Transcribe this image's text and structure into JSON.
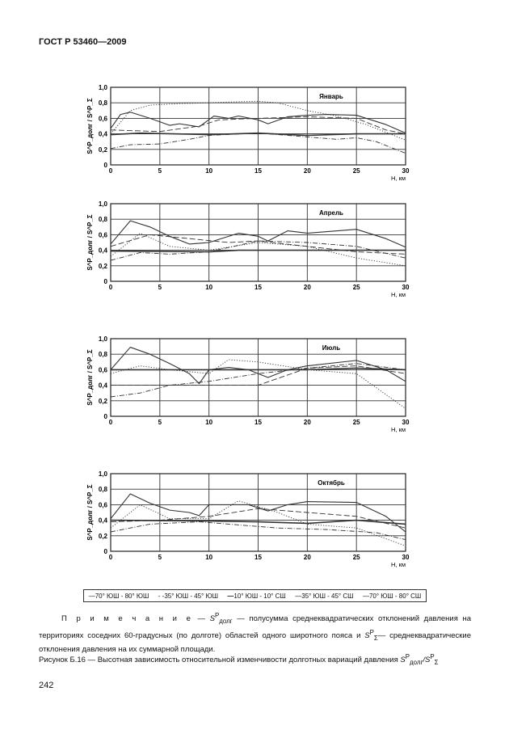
{
  "header": "ГОСТ Р 53460—2009",
  "legend": [
    "70° ЮШ - 80° ЮШ",
    "35° ЮШ - 45° ЮШ",
    "10° ЮШ - 10° СШ",
    "35° ЮШ - 45° СШ",
    "70° ЮШ - 80° СШ"
  ],
  "note": {
    "label": "П р и м е ч а н и е",
    "dash": "—",
    "sym1": "S",
    "sup1": "P",
    "sub1": "долг",
    "text1": "— полусумма среднеквадратических отклонений давления на территориях соседних 60-градусных (по долготе) областей одного широтного пояса и",
    "sym2": "S",
    "sup2": "P",
    "sub2": "Σ",
    "text2": "— среднеквадратические отклонения давления на их суммарной площади."
  },
  "caption": {
    "text": "Рисунок Б.16 — Высотная зависимость относительной изменчивости долготных вариаций давления",
    "sym": "S",
    "sup": "P",
    "sub": "долг",
    "slash": "/S",
    "sup2": "P",
    "sub2": "Σ"
  },
  "page_number": "242",
  "chart_data": [
    {
      "type": "line",
      "title": "Январь",
      "xlabel": "H, км",
      "ylabel": "S^P_долг / S^P_Σ",
      "xlim": [
        0,
        30
      ],
      "ylim": [
        0,
        1
      ],
      "xticks": [
        "0",
        "5",
        "10",
        "15",
        "20",
        "25",
        "30"
      ],
      "yticks": [
        "0",
        "0,2",
        "0,4",
        "0,6",
        "0,8",
        "1,0"
      ],
      "grid": true,
      "series": [
        {
          "name": "70° ЮШ - 80° ЮШ",
          "style": "solid",
          "x": [
            0,
            1,
            2,
            4,
            6,
            7,
            9,
            10.5,
            12,
            13,
            15,
            16,
            18,
            20,
            22,
            25,
            28,
            30
          ],
          "y": [
            0.47,
            0.65,
            0.68,
            0.6,
            0.51,
            0.53,
            0.49,
            0.63,
            0.6,
            0.63,
            0.58,
            0.53,
            0.62,
            0.64,
            0.65,
            0.64,
            0.52,
            0.41
          ]
        },
        {
          "name": "35° ЮШ - 45° ЮШ",
          "style": "dotted",
          "x": [
            0,
            2,
            4,
            7,
            10,
            12,
            15,
            17,
            20,
            23,
            26,
            30
          ],
          "y": [
            0.4,
            0.7,
            0.77,
            0.79,
            0.8,
            0.81,
            0.82,
            0.8,
            0.7,
            0.63,
            0.52,
            0.32
          ]
        },
        {
          "name": "10° ЮШ - 10° СШ",
          "style": "bold",
          "x": [
            0,
            3,
            10,
            15,
            20,
            25,
            30
          ],
          "y": [
            0.39,
            0.41,
            0.39,
            0.41,
            0.38,
            0.4,
            0.4
          ]
        },
        {
          "name": "35° ЮШ - 45° СШ",
          "style": "dashdot",
          "x": [
            0,
            2,
            5,
            8,
            10,
            15,
            20,
            23,
            25,
            27,
            30
          ],
          "y": [
            0.21,
            0.26,
            0.27,
            0.33,
            0.38,
            0.41,
            0.36,
            0.33,
            0.35,
            0.3,
            0.15
          ]
        },
        {
          "name": "70° ЮШ - 80° СШ",
          "style": "dashed",
          "x": [
            0,
            5,
            9,
            11,
            15,
            20,
            25,
            28,
            30
          ],
          "y": [
            0.45,
            0.43,
            0.5,
            0.58,
            0.6,
            0.62,
            0.6,
            0.45,
            0.4
          ]
        }
      ]
    },
    {
      "type": "line",
      "title": "Апрель",
      "xlabel": "H, км",
      "ylabel": "S^P_долг / S^P_Σ",
      "xlim": [
        0,
        30
      ],
      "ylim": [
        0,
        1
      ],
      "xticks": [
        "0",
        "5",
        "10",
        "15",
        "20",
        "25",
        "30"
      ],
      "yticks": [
        "0",
        "0,2",
        "0,4",
        "0,6",
        "0,8",
        "1,0"
      ],
      "grid": true,
      "series": [
        {
          "name": "70° ЮШ - 80° ЮШ",
          "style": "solid",
          "x": [
            0,
            2,
            4,
            6,
            8,
            10,
            13,
            15,
            16,
            18,
            20,
            25,
            28,
            30
          ],
          "y": [
            0.48,
            0.78,
            0.7,
            0.58,
            0.48,
            0.5,
            0.62,
            0.58,
            0.52,
            0.65,
            0.62,
            0.67,
            0.55,
            0.44
          ]
        },
        {
          "name": "35° ЮШ - 45° ЮШ",
          "style": "dotted",
          "x": [
            0,
            3,
            6,
            10,
            15,
            20,
            25,
            30
          ],
          "y": [
            0.32,
            0.62,
            0.45,
            0.4,
            0.5,
            0.45,
            0.3,
            0.2
          ]
        },
        {
          "name": "10° ЮШ - 10° СШ",
          "style": "bold",
          "x": [
            0,
            10,
            13,
            18,
            25,
            30
          ],
          "y": [
            0.39,
            0.38,
            0.4,
            0.4,
            0.4,
            0.4
          ]
        },
        {
          "name": "35° ЮШ - 45° СШ",
          "style": "dashdot",
          "x": [
            0,
            3,
            6,
            10,
            15,
            20,
            25,
            30
          ],
          "y": [
            0.27,
            0.37,
            0.35,
            0.38,
            0.52,
            0.5,
            0.45,
            0.3
          ]
        },
        {
          "name": "70° ЮШ - 80° СШ",
          "style": "dashed",
          "x": [
            0,
            4,
            8,
            12,
            15,
            20,
            25,
            30
          ],
          "y": [
            0.45,
            0.6,
            0.55,
            0.5,
            0.52,
            0.45,
            0.38,
            0.35
          ]
        }
      ]
    },
    {
      "type": "line",
      "title": "Июль",
      "xlabel": "H, км",
      "ylabel": "S^P_долг / S^P_Σ",
      "xlim": [
        0,
        30
      ],
      "ylim": [
        0,
        1
      ],
      "xticks": [
        "0",
        "5",
        "10",
        "15",
        "20",
        "25",
        "30"
      ],
      "yticks": [
        "0",
        "0,2",
        "0,4",
        "0,6",
        "0,8",
        "1,0"
      ],
      "grid": true,
      "series": [
        {
          "name": "70° ЮШ - 80° ЮШ",
          "style": "solid",
          "x": [
            0,
            2,
            4,
            6,
            8,
            9,
            10,
            12,
            14,
            16,
            18,
            20,
            25,
            28,
            30
          ],
          "y": [
            0.6,
            0.89,
            0.8,
            0.68,
            0.55,
            0.42,
            0.6,
            0.63,
            0.6,
            0.5,
            0.6,
            0.65,
            0.72,
            0.6,
            0.45
          ]
        },
        {
          "name": "35° ЮШ - 45° ЮШ",
          "style": "dotted",
          "x": [
            0,
            3,
            6,
            10,
            12,
            15,
            20,
            25,
            30
          ],
          "y": [
            0.55,
            0.65,
            0.6,
            0.55,
            0.73,
            0.7,
            0.6,
            0.55,
            0.1
          ]
        },
        {
          "name": "10° ЮШ - 10° СШ",
          "style": "bold",
          "x": [
            0,
            5,
            10,
            20,
            25,
            30
          ],
          "y": [
            0.6,
            0.6,
            0.6,
            0.6,
            0.62,
            0.6
          ]
        },
        {
          "name": "35° ЮШ - 45° СШ",
          "style": "dashdot",
          "x": [
            0,
            3,
            6,
            10,
            15,
            20,
            25,
            30
          ],
          "y": [
            0.25,
            0.3,
            0.4,
            0.45,
            0.55,
            0.62,
            0.68,
            0.6
          ]
        },
        {
          "name": "70° ЮШ - 80° СШ",
          "style": "dashed",
          "x": [
            0,
            5,
            10,
            15,
            20,
            25,
            30
          ],
          "y": [
            0.4,
            0.4,
            0.4,
            0.4,
            0.62,
            0.65,
            0.55
          ]
        }
      ]
    },
    {
      "type": "line",
      "title": "Октябрь",
      "xlabel": "H, км",
      "ylabel": "S^P_долг / S^P_Σ",
      "xlim": [
        0,
        30
      ],
      "ylim": [
        0,
        1
      ],
      "xticks": [
        "0",
        "5",
        "10",
        "15",
        "20",
        "25",
        "30"
      ],
      "yticks": [
        "0",
        "0,2",
        "0,4",
        "0,6",
        "0,8",
        "1,0"
      ],
      "grid": true,
      "series": [
        {
          "name": "70° ЮШ - 80° ЮШ",
          "style": "solid",
          "x": [
            0,
            2,
            4,
            6,
            8,
            9,
            10,
            12,
            14,
            16,
            18,
            20,
            25,
            28,
            30
          ],
          "y": [
            0.42,
            0.74,
            0.62,
            0.53,
            0.5,
            0.46,
            0.6,
            0.6,
            0.6,
            0.52,
            0.6,
            0.64,
            0.63,
            0.45,
            0.25
          ]
        },
        {
          "name": "35° ЮШ - 45° ЮШ",
          "style": "dotted",
          "x": [
            0,
            3,
            6,
            10,
            13,
            17,
            20,
            25,
            30
          ],
          "y": [
            0.3,
            0.6,
            0.42,
            0.42,
            0.65,
            0.5,
            0.35,
            0.3,
            0.07
          ]
        },
        {
          "name": "10° ЮШ - 10° СШ",
          "style": "bold",
          "x": [
            0,
            10,
            15,
            20,
            25,
            30
          ],
          "y": [
            0.4,
            0.39,
            0.38,
            0.36,
            0.4,
            0.35
          ]
        },
        {
          "name": "35° ЮШ - 45° СШ",
          "style": "dashdot",
          "x": [
            0,
            4,
            9,
            12,
            17,
            22,
            27,
            30
          ],
          "y": [
            0.25,
            0.35,
            0.38,
            0.35,
            0.3,
            0.28,
            0.24,
            0.15
          ]
        },
        {
          "name": "70° ЮШ - 80° СШ",
          "style": "dashed",
          "x": [
            0,
            5,
            10,
            15,
            20,
            25,
            30
          ],
          "y": [
            0.38,
            0.4,
            0.45,
            0.55,
            0.5,
            0.45,
            0.3
          ]
        }
      ]
    }
  ]
}
